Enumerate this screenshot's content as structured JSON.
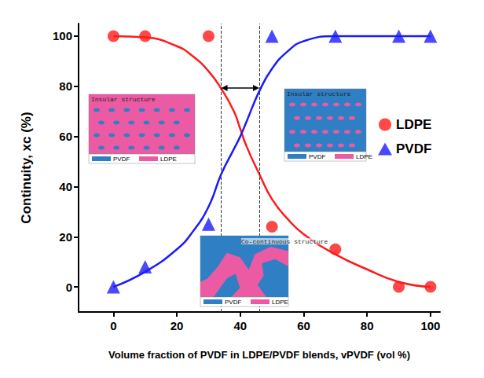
{
  "chart_data": {
    "type": "scatter",
    "x_label": "Volume fraction of PVDF in LDPE/PVDF blends, vPVDF (vol %)",
    "y_label": "Continuity, xc (%)",
    "xlim": [
      -11,
      103
    ],
    "xticks": [
      0,
      20,
      40,
      60,
      80,
      100
    ],
    "ylim": [
      -10,
      105
    ],
    "yticks": [
      0,
      20,
      40,
      60,
      80,
      100
    ],
    "grid": false,
    "legend": "right",
    "series": [
      {
        "name": "LDPE",
        "color": "#ff1a1a",
        "marker": "circle",
        "x": [
          0,
          10,
          30,
          50,
          70,
          90,
          100
        ],
        "values": [
          100,
          100,
          100,
          24,
          15,
          0,
          0
        ],
        "fit_x": [
          0,
          10,
          20,
          25,
          30,
          34,
          38,
          40,
          42,
          46,
          50,
          55,
          60,
          70,
          80,
          90,
          100
        ],
        "fit_values": [
          100,
          99.5,
          96,
          92,
          86,
          79,
          70,
          63,
          56,
          45,
          35,
          27,
          21,
          13,
          7,
          2,
          0
        ]
      },
      {
        "name": "PVDF",
        "color": "#1a1aff",
        "marker": "triangle",
        "x": [
          0,
          10,
          30,
          50,
          70,
          90,
          100
        ],
        "values": [
          0,
          8,
          25,
          100,
          100,
          100,
          100
        ],
        "fit_x": [
          0,
          10,
          20,
          25,
          30,
          34,
          38,
          40,
          42,
          46,
          50,
          55,
          60,
          70,
          80,
          90,
          100
        ],
        "fit_values": [
          0,
          6,
          15,
          22,
          32,
          45,
          55,
          60,
          66,
          78,
          87,
          94,
          98,
          100,
          100,
          100,
          100
        ]
      }
    ],
    "vlines": [
      34,
      46
    ],
    "insets": [
      {
        "title": "Insular structure",
        "labels": [
          "PVDF",
          "LDPE"
        ]
      },
      {
        "title": "Insular structure",
        "labels": [
          "PVDF",
          "LDPE"
        ]
      },
      {
        "title": "Co-continuous structure",
        "labels": [
          "PVDF",
          "LDPE"
        ]
      }
    ]
  }
}
